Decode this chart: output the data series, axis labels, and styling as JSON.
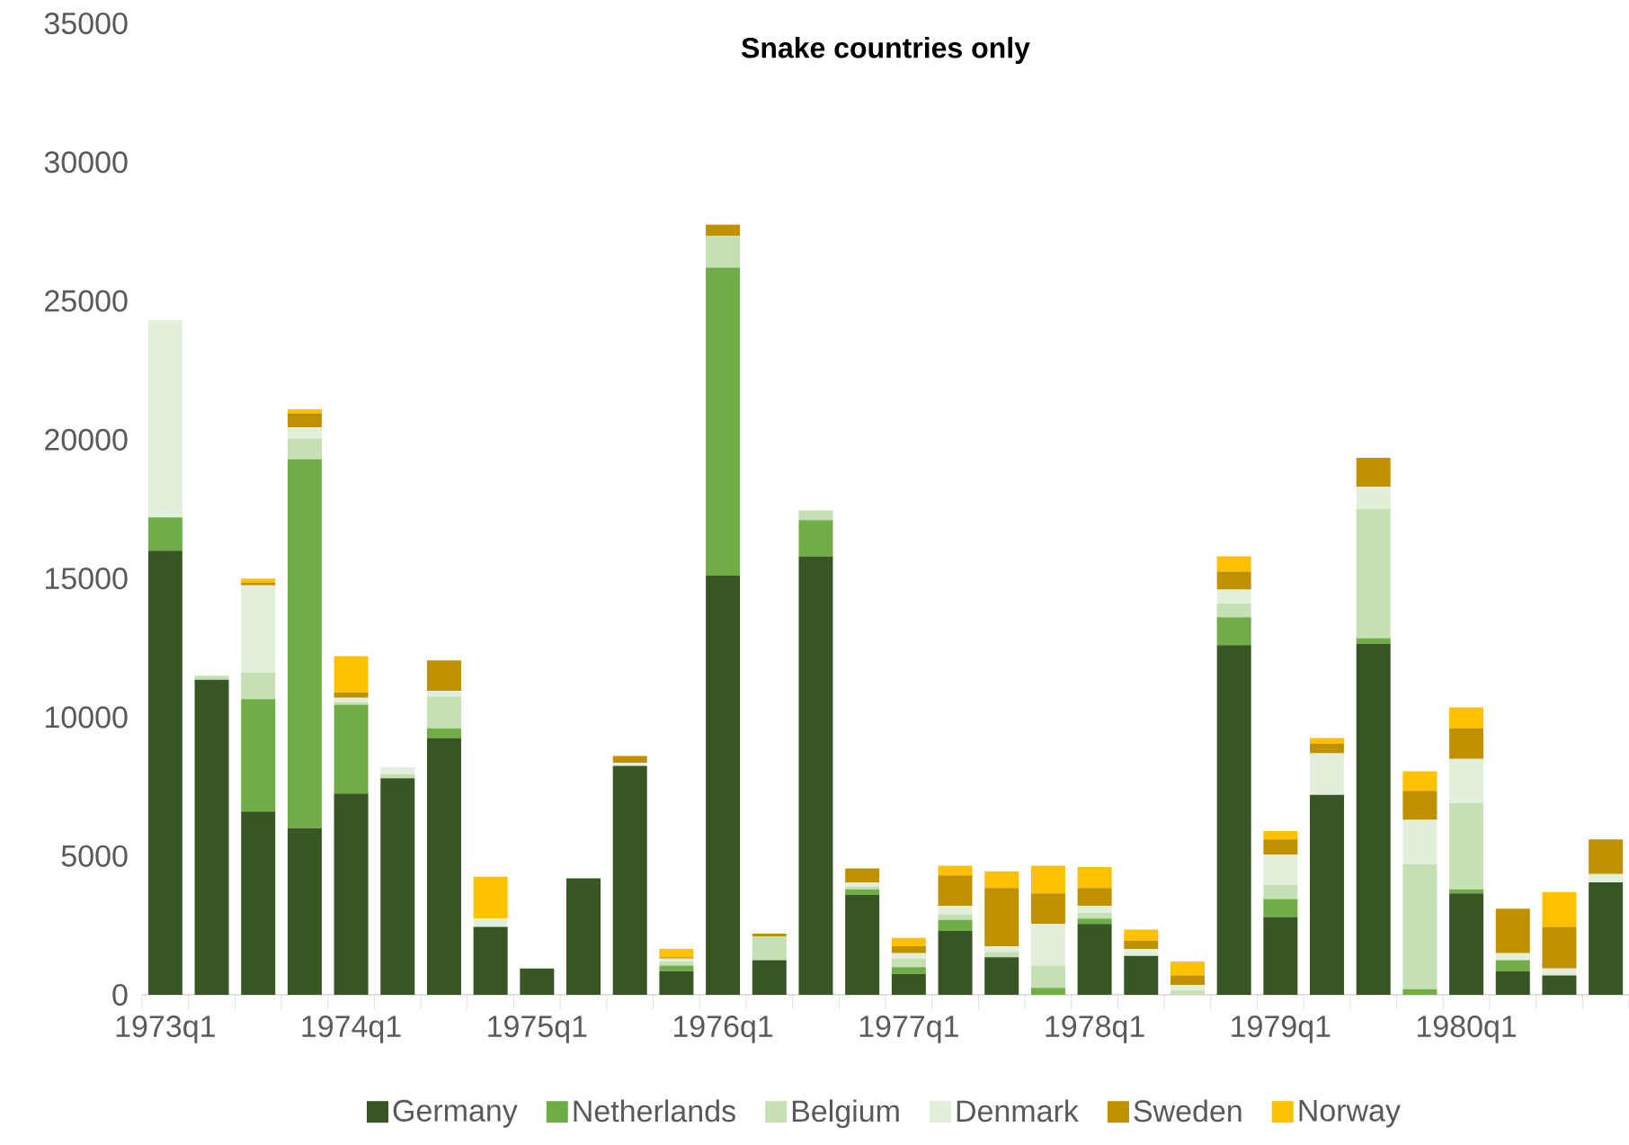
{
  "chart_data": {
    "type": "bar",
    "title": "Snake countries only",
    "stacked": true,
    "legend": "bottom",
    "categories": [
      "1973q1",
      null,
      null,
      null,
      "1974q1",
      null,
      null,
      null,
      "1975q1",
      null,
      null,
      null,
      "1976q1",
      null,
      null,
      null,
      "1977q1",
      null,
      null,
      null,
      "1978q1",
      null,
      null,
      null,
      "1979q1",
      null,
      null,
      null,
      "1980q1",
      null,
      null,
      null
    ],
    "ylim": [
      0,
      35000
    ],
    "yticks": [
      0,
      5000,
      10000,
      15000,
      20000,
      25000,
      30000,
      35000
    ],
    "series": [
      {
        "name": "Germany",
        "color": "#375623",
        "values": [
          16000,
          11350,
          6600,
          6000,
          7250,
          7800,
          9250,
          2450,
          950,
          4200,
          8250,
          850,
          15100,
          1250,
          15800,
          3600,
          750,
          2300,
          1350,
          0,
          2550,
          1400,
          0,
          12600,
          2800,
          7200,
          12650,
          0,
          3650,
          850,
          700,
          4050
        ]
      },
      {
        "name": "Netherlands",
        "color": "#70ad47",
        "values": [
          1200,
          0,
          4050,
          13300,
          3200,
          0,
          350,
          0,
          0,
          0,
          0,
          200,
          11100,
          0,
          1300,
          200,
          250,
          400,
          0,
          250,
          200,
          0,
          0,
          1000,
          650,
          0,
          200,
          200,
          150,
          400,
          0,
          0
        ]
      },
      {
        "name": "Belgium",
        "color": "#c5e0b4",
        "values": [
          0,
          150,
          950,
          750,
          100,
          150,
          1150,
          0,
          0,
          0,
          0,
          150,
          1150,
          850,
          350,
          100,
          300,
          200,
          200,
          800,
          200,
          0,
          150,
          500,
          500,
          0,
          4650,
          4500,
          3100,
          null,
          0,
          0
        ]
      },
      {
        "name": "Denmark",
        "color": "#e2efda",
        "values": [
          7100,
          null,
          3150,
          400,
          150,
          250,
          200,
          300,
          0,
          0,
          100,
          100,
          0,
          null,
          0,
          150,
          200,
          300,
          200,
          1500,
          250,
          250,
          200,
          500,
          1100,
          1500,
          800,
          1600,
          1600,
          250,
          250,
          300
        ]
      },
      {
        "name": "Sweden",
        "color": "#bf9000",
        "values": [
          0,
          0,
          100,
          500,
          200,
          0,
          1100,
          0,
          0,
          0,
          250,
          50,
          400,
          100,
          0,
          500,
          250,
          1100,
          2100,
          1100,
          650,
          300,
          350,
          650,
          550,
          350,
          1050,
          1050,
          1100,
          1600,
          1500,
          1250
        ]
      },
      {
        "name": "Norway",
        "color": "#ffc000",
        "values": [
          0,
          0,
          150,
          150,
          1300,
          0,
          0,
          1500,
          0,
          0,
          0,
          300,
          0,
          0,
          0,
          0,
          300,
          350,
          600,
          1000,
          750,
          400,
          500,
          550,
          300,
          200,
          0,
          700,
          750,
          0,
          1250,
          0
        ]
      }
    ]
  }
}
